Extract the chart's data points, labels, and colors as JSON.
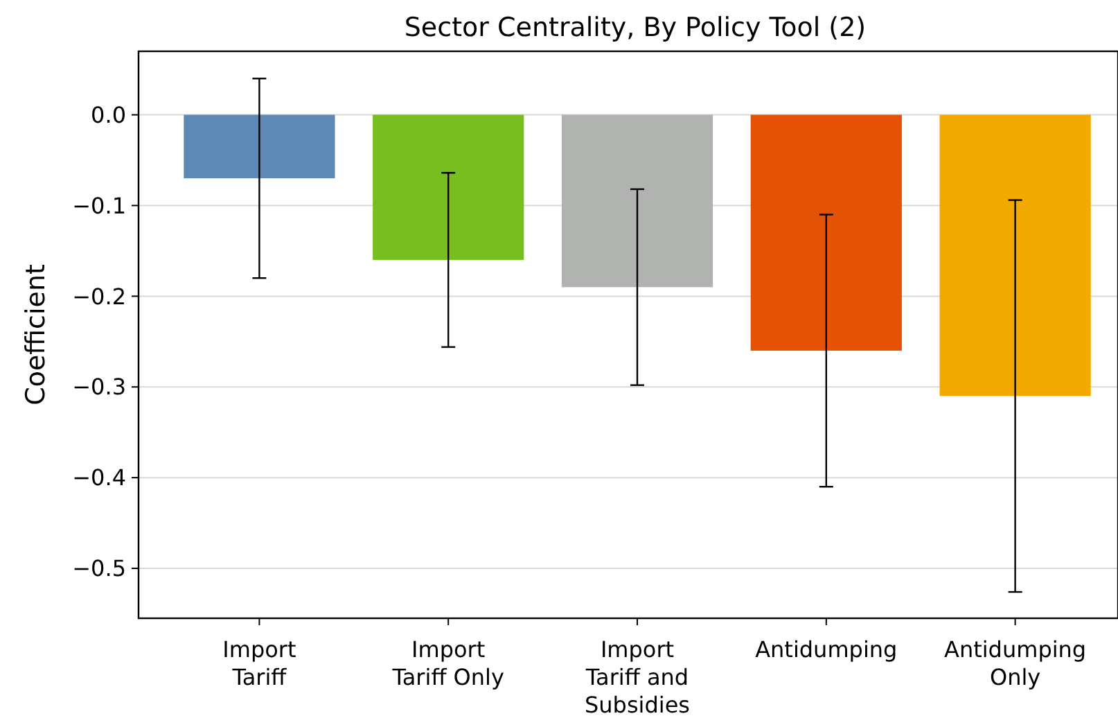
{
  "chart_data": {
    "type": "bar",
    "title": "Sector Centrality, By Policy Tool (2)",
    "ylabel": "Coefficient",
    "categories": [
      "Import Tariff",
      "Import Tariff Only",
      "Import Tariff and Subsidies",
      "Antidumping",
      "Antidumping Only"
    ],
    "values": [
      -0.07,
      -0.16,
      -0.19,
      -0.26,
      -0.31
    ],
    "colors": [
      "#5d8ab4",
      "#78be21",
      "#b1b3b1",
      "#e35205",
      "#f2a900"
    ],
    "errors": [
      0.11,
      0.096,
      0.108,
      0.15,
      0.216
    ],
    "ylim": [
      -0.555,
      0.07
    ],
    "yticks": [
      {
        "value": 0,
        "label": "0.0"
      },
      -0.1,
      -0.2,
      -0.3,
      -0.4,
      -0.5
    ],
    "grid": "y"
  }
}
